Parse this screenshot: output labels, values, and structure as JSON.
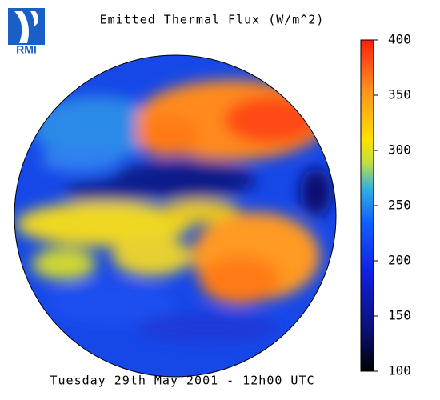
{
  "logo": "RMI",
  "title": "Emitted Thermal Flux (W/m^2)",
  "footer": "Tuesday 29th May 2001 - 12h00 UTC",
  "colorbar": {
    "lim": [
      100,
      400
    ],
    "ticks": [
      100,
      150,
      200,
      250,
      300,
      350,
      400
    ]
  }
}
